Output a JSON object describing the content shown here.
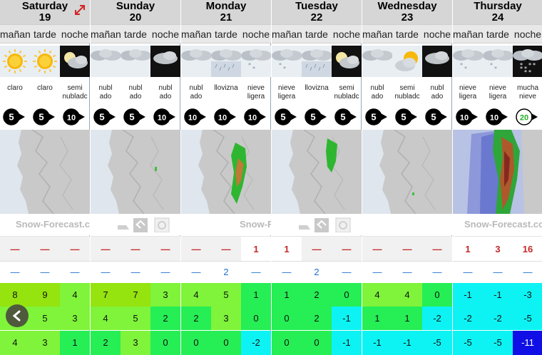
{
  "colors": {
    "t_yellowgreen": "#95e30f",
    "t_green": "#26ee55",
    "t_lightgreen": "#7ff43a",
    "t_cyan": "#0df3f3",
    "t_blue": "#1010e6",
    "snow_red": "#c62828",
    "rain_blue": "#1d6fcf",
    "wind_disc": "#000000",
    "wind_disc_high": "#25b025"
  },
  "logo_text": "Snow-Forecast.com",
  "days": [
    {
      "name": "Saturday",
      "date": "19",
      "periods": [
        "mañana",
        "tarde",
        "noche"
      ],
      "icons": [
        "sun-icon",
        "sun-icon",
        "moon-cloud-icon"
      ],
      "desc": [
        [
          "claro"
        ],
        [
          "claro"
        ],
        [
          "semi",
          "nubladc"
        ]
      ],
      "wind": [
        "5",
        "5",
        "10"
      ],
      "snow": [
        "—",
        "—",
        "—"
      ],
      "rain": [
        "—",
        "—",
        "—"
      ],
      "t_high": [
        "8",
        "9",
        "4"
      ],
      "t_mid": [
        "5",
        "5",
        "3"
      ],
      "t_low": [
        "4",
        "3",
        "1"
      ]
    },
    {
      "name": "Sunday",
      "date": "20",
      "periods": [
        "mañana",
        "tarde",
        "noche"
      ],
      "icons": [
        "cloud-icon",
        "cloud-icon",
        "night-cloud-icon"
      ],
      "desc": [
        [
          "nubl",
          "ado"
        ],
        [
          "nubl",
          "ado"
        ],
        [
          "nubl",
          "ado"
        ]
      ],
      "wind": [
        "5",
        "5",
        "10"
      ],
      "snow": [
        "—",
        "—",
        "—"
      ],
      "rain": [
        "—",
        "—",
        "—"
      ],
      "t_high": [
        "7",
        "7",
        "3"
      ],
      "t_mid": [
        "4",
        "5",
        "2"
      ],
      "t_low": [
        "2",
        "3",
        "0"
      ]
    },
    {
      "name": "Monday",
      "date": "21",
      "periods": [
        "mañana",
        "tarde",
        "noche"
      ],
      "icons": [
        "cloud-icon",
        "drizzle-icon",
        "snow-cloud-icon"
      ],
      "desc": [
        [
          "nubl",
          "ado"
        ],
        [
          "llovizna"
        ],
        [
          "nieve",
          "ligera"
        ]
      ],
      "wind": [
        "10",
        "10",
        "10"
      ],
      "snow": [
        "—",
        "—",
        "1"
      ],
      "rain": [
        "—",
        "2",
        "—"
      ],
      "t_high": [
        "4",
        "5",
        "1"
      ],
      "t_mid": [
        "2",
        "3",
        "0"
      ],
      "t_low": [
        "0",
        "0",
        "-2"
      ]
    },
    {
      "name": "Tuesday",
      "date": "22",
      "periods": [
        "mañana",
        "tarde",
        "noche"
      ],
      "icons": [
        "snow-cloud-icon",
        "drizzle-icon",
        "moon-cloud-icon"
      ],
      "desc": [
        [
          "nieve",
          "ligera"
        ],
        [
          "llovizna"
        ],
        [
          "semi",
          "nubladc"
        ]
      ],
      "wind": [
        "5",
        "5",
        "5"
      ],
      "snow": [
        "1",
        "—",
        "—"
      ],
      "rain": [
        "—",
        "2",
        "—"
      ],
      "t_high": [
        "1",
        "2",
        "0"
      ],
      "t_mid": [
        "0",
        "2",
        "-1"
      ],
      "t_low": [
        "0",
        "0",
        "-1"
      ]
    },
    {
      "name": "Wednesday",
      "date": "23",
      "periods": [
        "mañana",
        "tarde",
        "noche"
      ],
      "icons": [
        "cloud-icon",
        "sun-cloud-icon",
        "night-cloud-icon"
      ],
      "desc": [
        [
          "nubl",
          "ado"
        ],
        [
          "semi",
          "nubladc"
        ],
        [
          "nubl",
          "ado"
        ]
      ],
      "wind": [
        "5",
        "5",
        "5"
      ],
      "snow": [
        "—",
        "—",
        "—"
      ],
      "rain": [
        "—",
        "—",
        "—"
      ],
      "t_high": [
        "4",
        "4",
        "0"
      ],
      "t_mid": [
        "1",
        "1",
        "-2"
      ],
      "t_low": [
        "-1",
        "-1",
        "-5"
      ]
    },
    {
      "name": "Thursday",
      "date": "24",
      "periods": [
        "mañana",
        "tarde",
        "noche"
      ],
      "icons": [
        "snow-cloud-icon",
        "snow-cloud-icon",
        "heavy-snow-icon"
      ],
      "desc": [
        [
          "nieve",
          "ligera"
        ],
        [
          "nieve",
          "ligera"
        ],
        [
          "mucha",
          "nieve"
        ]
      ],
      "wind": [
        "10",
        "10",
        "20"
      ],
      "snow": [
        "1",
        "3",
        "16"
      ],
      "rain": [
        "—",
        "—",
        "—"
      ],
      "t_high": [
        "-1",
        "-1",
        "-3"
      ],
      "t_mid": [
        "-2",
        "-2",
        "-5"
      ],
      "t_low": [
        "-5",
        "-5",
        "-11"
      ]
    }
  ]
}
